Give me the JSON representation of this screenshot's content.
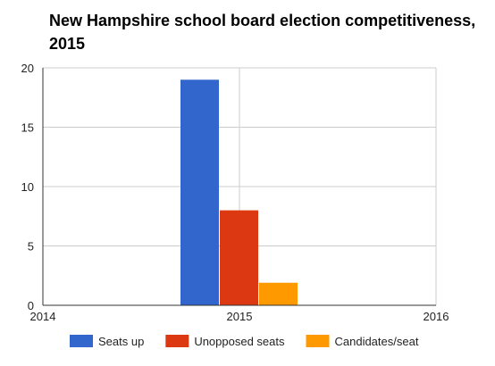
{
  "chart_data": {
    "type": "bar",
    "title": "New Hampshire school board election competitiveness, 2015",
    "categories": [
      "2015"
    ],
    "x_ticks": [
      "2014",
      "2015",
      "2016"
    ],
    "xlim": [
      2014,
      2016
    ],
    "ylim": [
      0,
      20
    ],
    "y_ticks": [
      "0",
      "5",
      "10",
      "15",
      "20"
    ],
    "grid": true,
    "legend_position": "bottom",
    "series": [
      {
        "name": "Seats up",
        "values": [
          19
        ],
        "color": "#3366cc"
      },
      {
        "name": "Unopposed seats",
        "values": [
          8
        ],
        "color": "#dc3912"
      },
      {
        "name": "Candidates/seat",
        "values": [
          1.9
        ],
        "color": "#ff9900"
      }
    ],
    "grid_color": "#cccccc",
    "axis_color": "#333333"
  }
}
